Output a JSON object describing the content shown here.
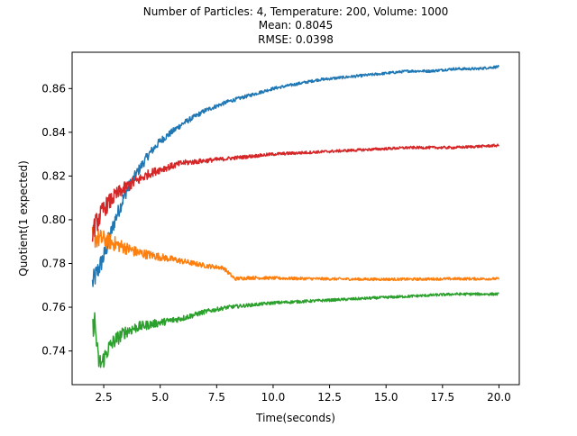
{
  "chart_data": {
    "type": "line",
    "title_lines": [
      "Number of Particles: 4, Temperature: 200, Volume: 1000",
      "Mean: 0.8045",
      "RMSE: 0.0398"
    ],
    "xlabel": "Time(seconds)",
    "ylabel": "Quotient(1 expected)",
    "xlim": [
      1.1,
      20.9
    ],
    "ylim": [
      0.7246,
      0.8766
    ],
    "xticks": [
      2.5,
      5.0,
      7.5,
      10.0,
      12.5,
      15.0,
      17.5,
      20.0
    ],
    "xtick_labels": [
      "2.5",
      "5.0",
      "7.5",
      "10.0",
      "12.5",
      "15.0",
      "17.5",
      "20.0"
    ],
    "yticks": [
      0.74,
      0.76,
      0.78,
      0.8,
      0.82,
      0.84,
      0.86
    ],
    "ytick_labels": [
      "0.74",
      "0.76",
      "0.78",
      "0.80",
      "0.82",
      "0.84",
      "0.86"
    ],
    "grid": false,
    "x_range": [
      2.0,
      20.0
    ],
    "series": [
      {
        "color": "#1f77b4",
        "x": [
          2.0,
          2.5,
          3.0,
          3.5,
          4.0,
          4.5,
          5.0,
          6.0,
          7.0,
          8.0,
          9.0,
          10.0,
          11.0,
          12.0,
          13.0,
          14.0,
          15.0,
          16.0,
          17.0,
          18.0,
          19.0,
          20.0
        ],
        "values": [
          0.771,
          0.783,
          0.8,
          0.813,
          0.822,
          0.83,
          0.836,
          0.844,
          0.85,
          0.854,
          0.857,
          0.86,
          0.862,
          0.864,
          0.865,
          0.866,
          0.867,
          0.868,
          0.868,
          0.869,
          0.869,
          0.87
        ]
      },
      {
        "color": "#ff7f0e",
        "x": [
          2.0,
          2.5,
          3.0,
          3.5,
          4.0,
          4.5,
          5.0,
          6.0,
          7.0,
          7.8,
          8.0,
          8.3,
          9.0,
          10.0,
          12.0,
          14.0,
          16.0,
          18.0,
          20.0
        ],
        "values": [
          0.792,
          0.791,
          0.789,
          0.787,
          0.785,
          0.784,
          0.783,
          0.781,
          0.779,
          0.778,
          0.776,
          0.773,
          0.7735,
          0.7733,
          0.773,
          0.7728,
          0.7728,
          0.773,
          0.773
        ]
      },
      {
        "color": "#2ca02c",
        "x": [
          2.0,
          2.1,
          2.25,
          2.4,
          2.7,
          3.0,
          3.5,
          4.0,
          5.0,
          6.0,
          7.0,
          8.0,
          9.0,
          10.0,
          12.0,
          14.0,
          16.0,
          18.0,
          20.0
        ],
        "values": [
          0.75,
          0.754,
          0.736,
          0.734,
          0.741,
          0.745,
          0.749,
          0.751,
          0.753,
          0.755,
          0.758,
          0.76,
          0.761,
          0.762,
          0.763,
          0.764,
          0.765,
          0.766,
          0.766
        ]
      },
      {
        "color": "#d62728",
        "x": [
          2.0,
          2.5,
          3.0,
          3.5,
          4.0,
          4.5,
          5.0,
          6.0,
          7.0,
          8.0,
          9.0,
          10.0,
          12.0,
          14.0,
          16.0,
          18.0,
          20.0
        ],
        "values": [
          0.795,
          0.805,
          0.811,
          0.815,
          0.818,
          0.821,
          0.823,
          0.826,
          0.827,
          0.828,
          0.829,
          0.83,
          0.831,
          0.832,
          0.833,
          0.833,
          0.834
        ]
      }
    ]
  }
}
